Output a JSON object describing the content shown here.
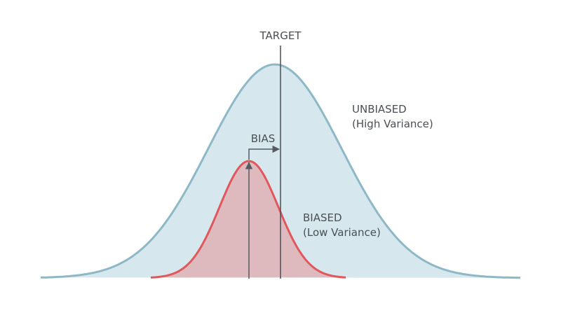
{
  "labels": {
    "target": "TARGET",
    "bias": "BIAS",
    "unbiased": "UNBIASED",
    "unbiased_note": "(High Variance)",
    "biased": "BIASED",
    "biased_note": "(Low Variance)"
  }
}
